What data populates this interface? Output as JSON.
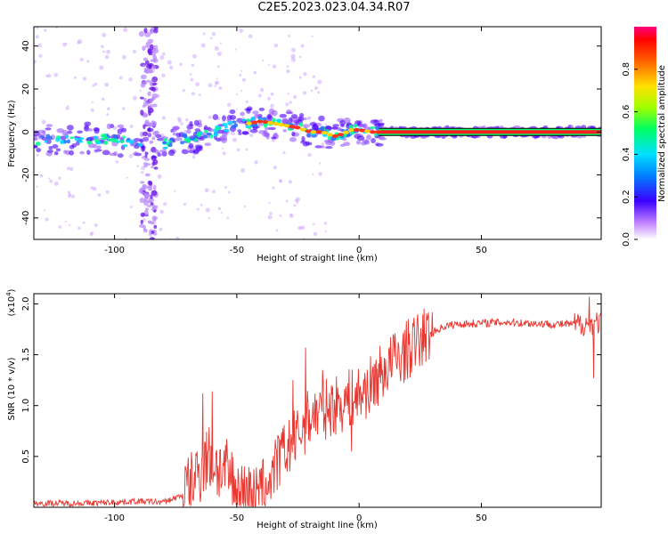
{
  "title": "C2E5.2023.023.04.34.R07",
  "chart_data": [
    {
      "type": "heatmap",
      "xlabel": "Height of straight line (km)",
      "ylabel": "Frequency (Hz)",
      "xlim": [
        -133,
        99
      ],
      "ylim": [
        -50,
        49
      ],
      "xticks": [
        -100,
        -50,
        0,
        50
      ],
      "yticks": [
        -40,
        -20,
        0,
        20,
        40
      ],
      "grid": false,
      "colorbar": {
        "label": "Normalized spectral amplitude",
        "range": [
          0,
          1
        ],
        "ticks": [
          "0.0",
          "0.2",
          "0.4",
          "0.6",
          "0.8"
        ]
      },
      "ridge": [
        {
          "x": -133,
          "y": -4
        },
        {
          "x": -120,
          "y": -4
        },
        {
          "x": -110,
          "y": -3
        },
        {
          "x": -100,
          "y": -4
        },
        {
          "x": -90,
          "y": -5
        },
        {
          "x": -82,
          "y": -6
        },
        {
          "x": -75,
          "y": -5
        },
        {
          "x": -70,
          "y": -3
        },
        {
          "x": -65,
          "y": -2
        },
        {
          "x": -60,
          "y": 0
        },
        {
          "x": -55,
          "y": 2
        },
        {
          "x": -50,
          "y": 3
        },
        {
          "x": -45,
          "y": 4
        },
        {
          "x": -40,
          "y": 5
        },
        {
          "x": -35,
          "y": 4
        },
        {
          "x": -30,
          "y": 3
        },
        {
          "x": -25,
          "y": 2
        },
        {
          "x": -20,
          "y": 0
        },
        {
          "x": -15,
          "y": 0
        },
        {
          "x": -10,
          "y": -2
        },
        {
          "x": -7,
          "y": -1
        },
        {
          "x": -3,
          "y": 1
        },
        {
          "x": 0,
          "y": 1
        },
        {
          "x": 5,
          "y": 0
        },
        {
          "x": 10,
          "y": 0
        },
        {
          "x": 30,
          "y": 0
        },
        {
          "x": 60,
          "y": 0
        },
        {
          "x": 99,
          "y": 0
        }
      ],
      "vertical_band_x": -86
    },
    {
      "type": "line",
      "xlabel": "Height of straight line (km)",
      "ylabel": "SNR (10 * v/v)",
      "y_multiplier_label": "(x10",
      "y_multiplier_exp": "4",
      "y_multiplier_close": ")",
      "xlim": [
        -133,
        99
      ],
      "ylim": [
        0,
        2.1
      ],
      "xticks": [
        -100,
        -50,
        0,
        50
      ],
      "yticks": [
        "0.5",
        "1.0",
        "1.5",
        "2.0"
      ],
      "grid": false,
      "series": [
        {
          "color": "#e8352e",
          "trend": [
            {
              "x": -133,
              "y": 0.04
            },
            {
              "x": -110,
              "y": 0.04
            },
            {
              "x": -90,
              "y": 0.06
            },
            {
              "x": -80,
              "y": 0.05
            },
            {
              "x": -72,
              "y": 0.12
            },
            {
              "x": -67,
              "y": 0.3
            },
            {
              "x": -62,
              "y": 0.5
            },
            {
              "x": -58,
              "y": 0.4
            },
            {
              "x": -53,
              "y": 0.3
            },
            {
              "x": -48,
              "y": 0.12
            },
            {
              "x": -42,
              "y": 0.12
            },
            {
              "x": -37,
              "y": 0.25
            },
            {
              "x": -32,
              "y": 0.5
            },
            {
              "x": -25,
              "y": 0.7
            },
            {
              "x": -20,
              "y": 0.9
            },
            {
              "x": -15,
              "y": 0.95
            },
            {
              "x": -10,
              "y": 1.0
            },
            {
              "x": -5,
              "y": 1.05
            },
            {
              "x": 0,
              "y": 1.1
            },
            {
              "x": 5,
              "y": 1.2
            },
            {
              "x": 10,
              "y": 1.35
            },
            {
              "x": 15,
              "y": 1.45
            },
            {
              "x": 20,
              "y": 1.55
            },
            {
              "x": 25,
              "y": 1.65
            },
            {
              "x": 30,
              "y": 1.72
            },
            {
              "x": 35,
              "y": 1.78
            },
            {
              "x": 40,
              "y": 1.8
            },
            {
              "x": 60,
              "y": 1.82
            },
            {
              "x": 80,
              "y": 1.8
            },
            {
              "x": 90,
              "y": 1.8
            },
            {
              "x": 99,
              "y": 1.82
            }
          ],
          "spikes": [
            {
              "x": -64,
              "y": 1.12
            },
            {
              "x": -60,
              "y": 1.14
            },
            {
              "x": -27,
              "y": 1.25
            },
            {
              "x": -22,
              "y": 1.57
            },
            {
              "x": -15,
              "y": 1.35
            },
            {
              "x": -3,
              "y": 0.55
            },
            {
              "x": 14,
              "y": 1.7
            },
            {
              "x": 94,
              "y": 2.07
            },
            {
              "x": 96,
              "y": 1.27
            }
          ]
        }
      ]
    }
  ]
}
